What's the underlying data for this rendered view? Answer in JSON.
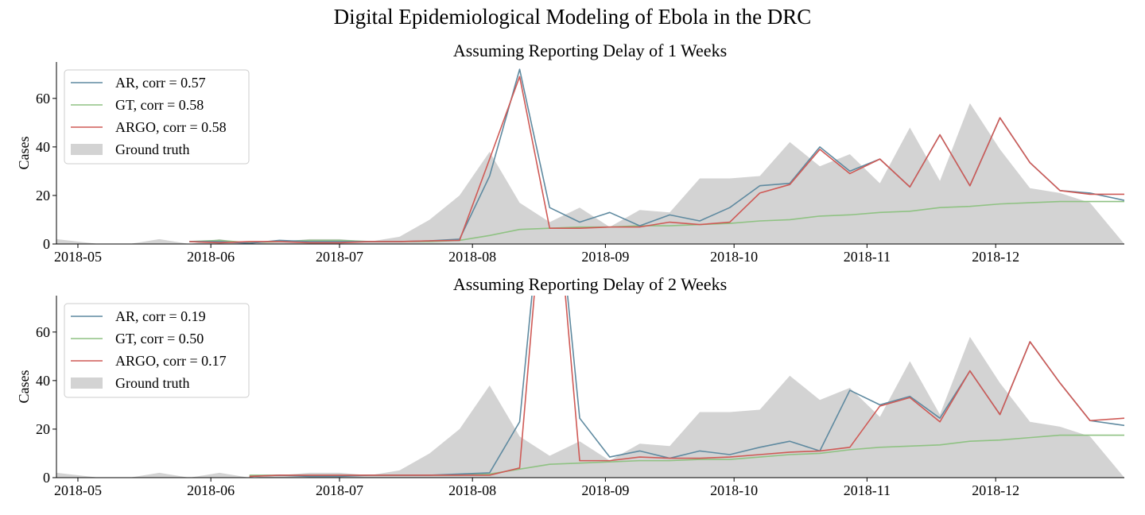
{
  "figure_title": "Digital Epidemiological Modeling of Ebola in the DRC",
  "colors": {
    "ar": "#5f8aa0",
    "gt": "#8fc283",
    "argo": "#cf5a56",
    "ground_truth_fill": "#d3d3d3"
  },
  "chart_data": [
    {
      "type": "line",
      "title": "Assuming Reporting Delay of 1 Weeks",
      "xlabel": "",
      "ylabel": "Cases",
      "ylim": [
        0,
        75
      ],
      "xlim": [
        "2018-04-26",
        "2018-12-31"
      ],
      "yticks": [
        0,
        20,
        40,
        60
      ],
      "xtick_labels": [
        "2018-05",
        "2018-06",
        "2018-07",
        "2018-08",
        "2018-09",
        "2018-10",
        "2018-11",
        "2018-12"
      ],
      "grid": false,
      "legend_position": "top-left",
      "legend": [
        {
          "key": "ar",
          "label": "AR, corr = 0.57",
          "kind": "line"
        },
        {
          "key": "gt",
          "label": "GT, corr = 0.58",
          "kind": "line"
        },
        {
          "key": "argo",
          "label": "ARGO, corr = 0.58",
          "kind": "patch"
        }
      ],
      "ground_truth": {
        "label": "Ground truth",
        "x": [
          "2018-04-26",
          "2018-05-06",
          "2018-05-13",
          "2018-05-20",
          "2018-05-27",
          "2018-06-03",
          "2018-06-10",
          "2018-06-17",
          "2018-06-24",
          "2018-07-01",
          "2018-07-08",
          "2018-07-15",
          "2018-07-22",
          "2018-07-29",
          "2018-08-05",
          "2018-08-12",
          "2018-08-19",
          "2018-08-26",
          "2018-09-02",
          "2018-09-09",
          "2018-09-16",
          "2018-09-23",
          "2018-09-30",
          "2018-10-07",
          "2018-10-14",
          "2018-10-21",
          "2018-10-28",
          "2018-11-04",
          "2018-11-11",
          "2018-11-18",
          "2018-11-25",
          "2018-12-02",
          "2018-12-09",
          "2018-12-16",
          "2018-12-23",
          "2018-12-31"
        ],
        "values": [
          2,
          0,
          0,
          2,
          0,
          2,
          0,
          1,
          2,
          2,
          1,
          3,
          10,
          20,
          38,
          17,
          9,
          15,
          7,
          14,
          13,
          27,
          27,
          28,
          42,
          32,
          37,
          25,
          48,
          26,
          58,
          39,
          23,
          21,
          17,
          0
        ]
      },
      "series": [
        {
          "key": "ar",
          "name": "AR",
          "x": [
            "2018-05-27",
            "2018-06-03",
            "2018-06-10",
            "2018-06-17",
            "2018-06-24",
            "2018-07-01",
            "2018-07-08",
            "2018-07-15",
            "2018-07-22",
            "2018-07-29",
            "2018-08-05",
            "2018-08-12",
            "2018-08-19",
            "2018-08-26",
            "2018-09-02",
            "2018-09-09",
            "2018-09-16",
            "2018-09-23",
            "2018-09-30",
            "2018-10-07",
            "2018-10-14",
            "2018-10-21",
            "2018-10-28",
            "2018-11-04",
            "2018-11-11",
            "2018-11-18",
            "2018-11-25",
            "2018-12-02",
            "2018-12-09",
            "2018-12-16",
            "2018-12-23",
            "2018-12-31"
          ],
          "values": [
            1,
            1,
            0.3,
            1.5,
            1,
            1,
            1,
            1,
            1.3,
            2,
            28,
            72,
            15,
            9,
            13,
            7.5,
            12,
            9.5,
            15,
            24,
            25,
            40,
            30,
            35,
            23.5,
            45,
            24,
            52,
            33.5,
            22,
            21,
            18
          ]
        },
        {
          "key": "gt",
          "name": "GT",
          "x": [
            "2018-05-27",
            "2018-06-03",
            "2018-06-10",
            "2018-06-17",
            "2018-06-24",
            "2018-07-01",
            "2018-07-08",
            "2018-07-15",
            "2018-07-22",
            "2018-07-29",
            "2018-08-05",
            "2018-08-12",
            "2018-08-19",
            "2018-08-26",
            "2018-09-02",
            "2018-09-09",
            "2018-09-16",
            "2018-09-23",
            "2018-09-30",
            "2018-10-07",
            "2018-10-14",
            "2018-10-21",
            "2018-10-28",
            "2018-11-04",
            "2018-11-11",
            "2018-11-18",
            "2018-11-25",
            "2018-12-02",
            "2018-12-09",
            "2018-12-16",
            "2018-12-23",
            "2018-12-31"
          ],
          "values": [
            1,
            1.5,
            0.5,
            1,
            1.5,
            1.5,
            1,
            1,
            1,
            1.5,
            3.5,
            6,
            6.5,
            7,
            7,
            7.5,
            7.5,
            8,
            8.5,
            9.5,
            10,
            11.5,
            12,
            13,
            13.5,
            15,
            15.5,
            16.5,
            17,
            17.5,
            17.5,
            17.5
          ]
        },
        {
          "key": "argo",
          "name": "ARGO",
          "x": [
            "2018-05-27",
            "2018-06-03",
            "2018-06-10",
            "2018-06-17",
            "2018-06-24",
            "2018-07-01",
            "2018-07-08",
            "2018-07-15",
            "2018-07-22",
            "2018-07-29",
            "2018-08-05",
            "2018-08-12",
            "2018-08-19",
            "2018-08-26",
            "2018-09-02",
            "2018-09-09",
            "2018-09-16",
            "2018-09-23",
            "2018-09-30",
            "2018-10-07",
            "2018-10-14",
            "2018-10-21",
            "2018-10-28",
            "2018-11-04",
            "2018-11-11",
            "2018-11-18",
            "2018-11-25",
            "2018-12-02",
            "2018-12-09",
            "2018-12-16",
            "2018-12-23",
            "2018-12-31"
          ],
          "values": [
            1,
            0.5,
            1,
            1,
            0.5,
            0.5,
            1,
            1,
            1.3,
            1.5,
            35,
            69,
            6.5,
            6.5,
            7,
            7,
            9,
            8,
            9,
            21,
            24.5,
            39,
            29,
            35,
            23.5,
            45,
            24,
            52,
            33.5,
            22,
            20.5,
            20.5
          ]
        }
      ]
    },
    {
      "type": "line",
      "title": "Assuming Reporting Delay of 2 Weeks",
      "xlabel": "",
      "ylabel": "Cases",
      "ylim": [
        0,
        75
      ],
      "xlim": [
        "2018-04-26",
        "2018-12-31"
      ],
      "yticks": [
        0,
        20,
        40,
        60
      ],
      "xtick_labels": [
        "2018-05",
        "2018-06",
        "2018-07",
        "2018-08",
        "2018-09",
        "2018-10",
        "2018-11",
        "2018-12"
      ],
      "grid": false,
      "legend_position": "top-left",
      "legend": [
        {
          "key": "ar",
          "label": "AR, corr = 0.19",
          "kind": "line"
        },
        {
          "key": "gt",
          "label": "GT, corr = 0.50",
          "kind": "line"
        },
        {
          "key": "argo",
          "label": "ARGO, corr = 0.17",
          "kind": "patch"
        }
      ],
      "ground_truth": {
        "label": "Ground truth",
        "x": [
          "2018-04-26",
          "2018-05-06",
          "2018-05-13",
          "2018-05-20",
          "2018-05-27",
          "2018-06-03",
          "2018-06-10",
          "2018-06-17",
          "2018-06-24",
          "2018-07-01",
          "2018-07-08",
          "2018-07-15",
          "2018-07-22",
          "2018-07-29",
          "2018-08-05",
          "2018-08-12",
          "2018-08-19",
          "2018-08-26",
          "2018-09-02",
          "2018-09-09",
          "2018-09-16",
          "2018-09-23",
          "2018-09-30",
          "2018-10-07",
          "2018-10-14",
          "2018-10-21",
          "2018-10-28",
          "2018-11-04",
          "2018-11-11",
          "2018-11-18",
          "2018-11-25",
          "2018-12-02",
          "2018-12-09",
          "2018-12-16",
          "2018-12-23",
          "2018-12-31"
        ],
        "values": [
          2,
          0,
          0,
          2,
          0,
          2,
          0,
          1,
          2,
          2,
          1,
          3,
          10,
          20,
          38,
          17,
          9,
          15,
          7,
          14,
          13,
          27,
          27,
          28,
          42,
          32,
          37,
          25,
          48,
          26,
          58,
          39,
          23,
          21,
          17,
          0
        ]
      },
      "series": [
        {
          "key": "ar",
          "name": "AR",
          "x": [
            "2018-06-10",
            "2018-06-17",
            "2018-06-24",
            "2018-07-01",
            "2018-07-08",
            "2018-07-15",
            "2018-07-22",
            "2018-07-29",
            "2018-08-05",
            "2018-08-12",
            "2018-08-19",
            "2018-08-26",
            "2018-09-02",
            "2018-09-09",
            "2018-09-16",
            "2018-09-23",
            "2018-09-30",
            "2018-10-07",
            "2018-10-14",
            "2018-10-21",
            "2018-10-28",
            "2018-11-04",
            "2018-11-11",
            "2018-11-18",
            "2018-11-25",
            "2018-12-02",
            "2018-12-09",
            "2018-12-16",
            "2018-12-23",
            "2018-12-31"
          ],
          "values": [
            0.5,
            1,
            0.5,
            0.5,
            1,
            1,
            1,
            1.5,
            2,
            23,
            150,
            24.5,
            8.5,
            11,
            8,
            11,
            9.5,
            12.5,
            15,
            11,
            36,
            30,
            33.5,
            24.5,
            44,
            26,
            56,
            39,
            23.5,
            21.5
          ]
        },
        {
          "key": "gt",
          "name": "GT",
          "x": [
            "2018-06-10",
            "2018-06-17",
            "2018-06-24",
            "2018-07-01",
            "2018-07-08",
            "2018-07-15",
            "2018-07-22",
            "2018-07-29",
            "2018-08-05",
            "2018-08-12",
            "2018-08-19",
            "2018-08-26",
            "2018-09-02",
            "2018-09-09",
            "2018-09-16",
            "2018-09-23",
            "2018-09-30",
            "2018-10-07",
            "2018-10-14",
            "2018-10-21",
            "2018-10-28",
            "2018-11-04",
            "2018-11-11",
            "2018-11-18",
            "2018-11-25",
            "2018-12-02",
            "2018-12-09",
            "2018-12-16",
            "2018-12-23",
            "2018-12-31"
          ],
          "values": [
            1,
            1,
            1,
            1,
            1,
            1,
            1,
            1,
            1.5,
            3.5,
            5.5,
            6,
            6.5,
            7,
            7,
            7.5,
            7.5,
            8.5,
            9.5,
            10,
            11.5,
            12.5,
            13,
            13.5,
            15,
            15.5,
            16.5,
            17.5,
            17.5,
            17.5
          ]
        },
        {
          "key": "argo",
          "name": "ARGO",
          "x": [
            "2018-06-10",
            "2018-06-17",
            "2018-06-24",
            "2018-07-01",
            "2018-07-08",
            "2018-07-15",
            "2018-07-22",
            "2018-07-29",
            "2018-08-05",
            "2018-08-12",
            "2018-08-19",
            "2018-08-26",
            "2018-09-02",
            "2018-09-09",
            "2018-09-16",
            "2018-09-23",
            "2018-09-30",
            "2018-10-07",
            "2018-10-14",
            "2018-10-21",
            "2018-10-28",
            "2018-11-04",
            "2018-11-11",
            "2018-11-18",
            "2018-11-25",
            "2018-12-02",
            "2018-12-09",
            "2018-12-16",
            "2018-12-23",
            "2018-12-31"
          ],
          "values": [
            0.5,
            1,
            1,
            1,
            1,
            1,
            1,
            1,
            1,
            4,
            150,
            7,
            7,
            8.5,
            8,
            8,
            8.5,
            9.5,
            10.5,
            11,
            12.5,
            29.5,
            33,
            23,
            44,
            26,
            56,
            39,
            23.5,
            24.5
          ]
        }
      ]
    }
  ]
}
